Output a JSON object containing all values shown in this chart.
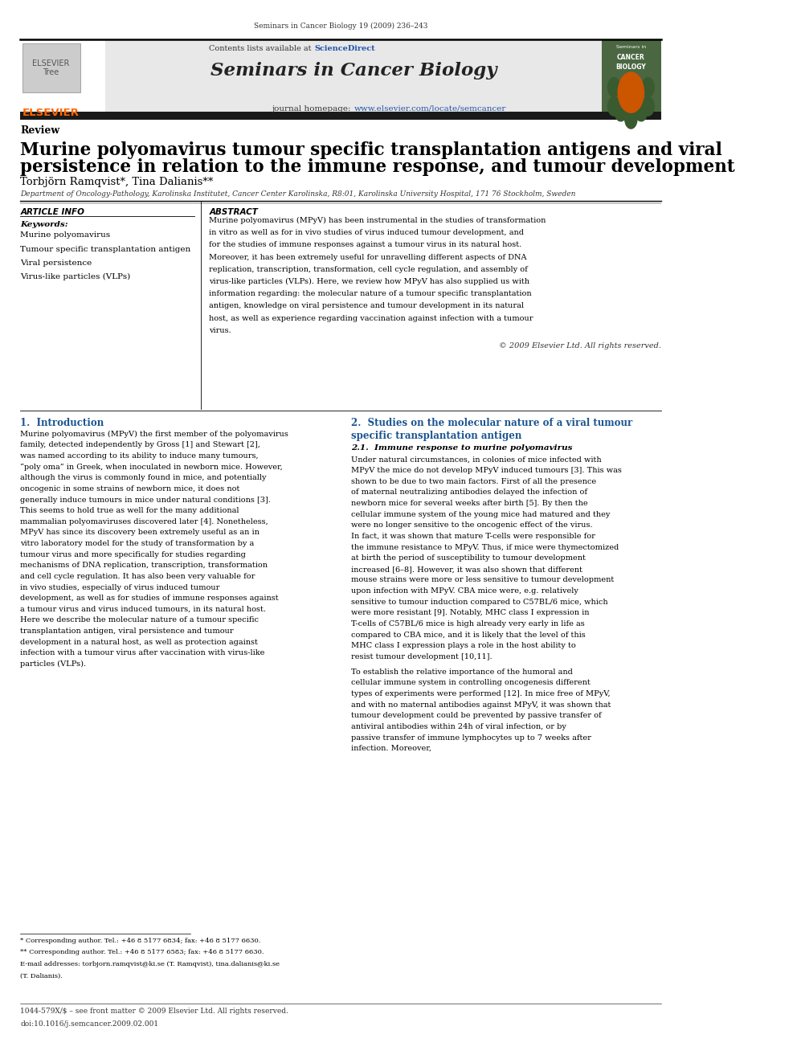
{
  "page_width": 9.92,
  "page_height": 13.23,
  "bg_color": "#ffffff",
  "top_journal_ref": "Seminars in Cancer Biology 19 (2009) 236–243",
  "header_bg": "#e8e8e8",
  "contents_line_pre": "Contents lists available at ",
  "sciencedirect_text": "ScienceDirect",
  "sciencedirect_color": "#2255aa",
  "journal_title": "Seminars in Cancer Biology",
  "homepage_pre": "journal homepage: ",
  "homepage_url": "www.elsevier.com/locate/semcancer",
  "homepage_url_color": "#2255aa",
  "section_label": "Review",
  "article_title_line1": "Murine polyomavirus tumour specific transplantation antigens and viral",
  "article_title_line2": "persistence in relation to the immune response, and tumour development",
  "authors": "Torbjörn Ramqvist*, Tina Dalianis**",
  "affiliation": "Department of Oncology-Pathology, Karolinska Institutet, Cancer Center Karolinska, R8:01, Karolinska University Hospital, 171 76 Stockholm, Sweden",
  "article_info_header": "ARTICLE INFO",
  "abstract_header": "ABSTRACT",
  "keywords_label": "Keywords:",
  "keywords": [
    "Murine polyomavirus",
    "Tumour specific transplantation antigen",
    "Viral persistence",
    "Virus-like particles (VLPs)"
  ],
  "abstract_text": "Murine polyomavirus (MPyV) has been instrumental in the studies of transformation in vitro as well as for in vivo studies of virus induced tumour development, and for the studies of immune responses against a tumour virus in its natural host. Moreover, it has been extremely useful for unravelling different aspects of DNA replication, transcription, transformation, cell cycle regulation, and assembly of virus-like particles (VLPs). Here, we review how MPyV has also supplied us with information regarding: the molecular nature of a tumour specific transplantation antigen, knowledge on viral persistence and tumour development in its natural host, as well as experience regarding vaccination against infection with a tumour virus.",
  "copyright_line": "© 2009 Elsevier Ltd. All rights reserved.",
  "intro_header": "1.  Introduction",
  "intro_text": "Murine polyomavirus (MPyV) the first member of the polyomavirus family, detected independently by Gross [1] and Stewart [2], was named according to its ability to induce many tumours, “poly oma” in Greek, when inoculated in newborn mice. However, although the virus is commonly found in mice, and potentially oncogenic in some strains of newborn mice, it does not generally induce tumours in mice under natural conditions [3]. This seems to hold true as well for the many additional mammalian polyomaviruses discovered later [4]. Nonetheless, MPyV has since its discovery been extremely useful as an in vitro laboratory model for the study of transformation by a tumour virus and more specifically for studies regarding mechanisms of DNA replication, transcription, transformation and cell cycle regulation. It has also been very valuable for in vivo studies, especially of virus induced tumour development, as well as for studies of immune responses against a tumour virus and virus induced tumours, in its natural host. Here we describe the molecular nature of a tumour specific transplantation antigen, viral persistence and tumour development in a natural host, as well as protection against infection with a tumour virus after vaccination with virus-like particles (VLPs).",
  "section2_header_line1": "2.  Studies on the molecular nature of a viral tumour",
  "section2_header_line2": "specific transplantation antigen",
  "section21_header": "2.1.  Immune response to murine polyomavirus",
  "section2_text": "Under natural circumstances, in colonies of mice infected with MPyV the mice do not develop MPyV induced tumours [3]. This was shown to be due to two main factors. First of all the presence of maternal neutralizing antibodies delayed the infection of newborn mice for several weeks after birth [5]. By then the cellular immune system of the young mice had matured and they were no longer sensitive to the oncogenic effect of the virus. In fact, it was shown that mature T-cells were responsible for the immune resistance to MPyV. Thus, if mice were thymectomized at birth the period of susceptibility to tumour development increased [6–8]. However, it was also shown that different mouse strains were more or less sensitive to tumour development upon infection with MPyV. CBA mice were, e.g. relatively sensitive to tumour induction compared to C57BL/6 mice, which were more resistant [9]. Notably, MHC class I expression in T-cells of C57BL/6 mice is high already very early in life as compared to CBA mice, and it is likely that the level of this MHC class I expression plays a role in the host ability to resist tumour development [10,11].",
  "section2_text2": "To establish the relative importance of the humoral and cellular immune system in controlling oncogenesis different types of experiments were performed [12]. In mice free of MPyV, and with no maternal antibodies against MPyV, it was shown that tumour development could be prevented by passive transfer of antiviral antibodies within 24h of viral infection, or by passive transfer of immune lymphocytes up to 7 weeks after infection. Moreover,",
  "footnote1": "* Corresponding author. Tel.: +46 8 5177 6834; fax: +46 8 5177 6630.",
  "footnote2": "** Corresponding author. Tel.: +46 8 5177 6583; fax: +46 8 5177 6630.",
  "footnote3": "E-mail addresses: torbjorn.ramqvist@ki.se (T. Ramqvist), tina.dalianis@ki.se",
  "footnote4": "(T. Dalianis).",
  "footer_line1": "1044-579X/$ – see front matter © 2009 Elsevier Ltd. All rights reserved.",
  "footer_line2": "doi:10.1016/j.semcancer.2009.02.001",
  "elsevier_color": "#ff6600",
  "dark_bar_color": "#1a1a1a",
  "intro_header_color": "#1a5490",
  "cover_bg_color": "#4a6741",
  "cover_text_color": "#ffffff"
}
